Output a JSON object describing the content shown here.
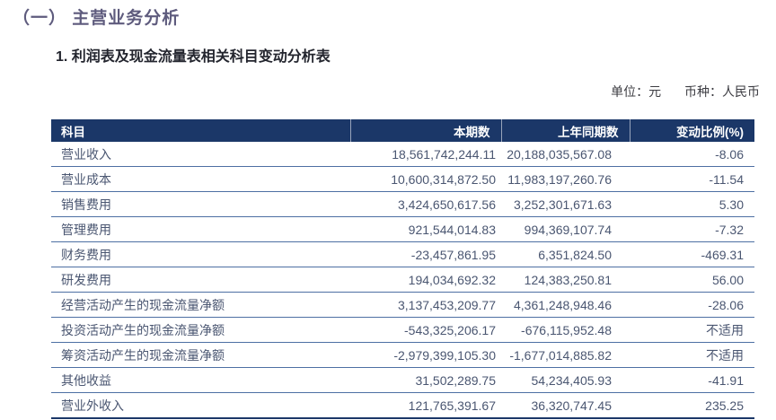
{
  "page": {
    "section_title": "（一） 主营业务分析",
    "subtitle": "1. 利润表及现金流量表相关科目变动分析表",
    "unit_note": "单位：元",
    "currency_note": "币种：人民币"
  },
  "colors": {
    "header_bg": "#1b3768",
    "row_border": "#4d6fa3",
    "section_title_color": "#5e5b7d",
    "body_text": "#4a5671"
  },
  "table": {
    "headers": [
      "科目",
      "本期数",
      "上年同期数",
      "变动比例(%)"
    ],
    "rows": [
      {
        "item": "营业收入",
        "current": "18,561,742,244.11",
        "prior": "20,188,035,567.08",
        "change": "-8.06"
      },
      {
        "item": "营业成本",
        "current": "10,600,314,872.50",
        "prior": "11,983,197,260.76",
        "change": "-11.54"
      },
      {
        "item": "销售费用",
        "current": "3,424,650,617.56",
        "prior": "3,252,301,671.63",
        "change": "5.30"
      },
      {
        "item": "管理费用",
        "current": "921,544,014.83",
        "prior": "994,369,107.74",
        "change": "-7.32"
      },
      {
        "item": "财务费用",
        "current": "-23,457,861.95",
        "prior": "6,351,824.50",
        "change": "-469.31"
      },
      {
        "item": "研发费用",
        "current": "194,034,692.32",
        "prior": "124,383,250.81",
        "change": "56.00"
      },
      {
        "item": "经营活动产生的现金流量净额",
        "current": "3,137,453,209.77",
        "prior": "4,361,248,948.46",
        "change": "-28.06"
      },
      {
        "item": "投资活动产生的现金流量净额",
        "current": "-543,325,206.17",
        "prior": "-676,115,952.48",
        "change": "不适用"
      },
      {
        "item": "筹资活动产生的现金流量净额",
        "current": "-2,979,399,105.30",
        "prior": "-1,677,014,885.82",
        "change": "不适用"
      },
      {
        "item": "其他收益",
        "current": "31,502,289.75",
        "prior": "54,234,405.93",
        "change": "-41.91"
      },
      {
        "item": "营业外收入",
        "current": "121,765,391.67",
        "prior": "36,320,747.45",
        "change": "235.25"
      }
    ]
  }
}
